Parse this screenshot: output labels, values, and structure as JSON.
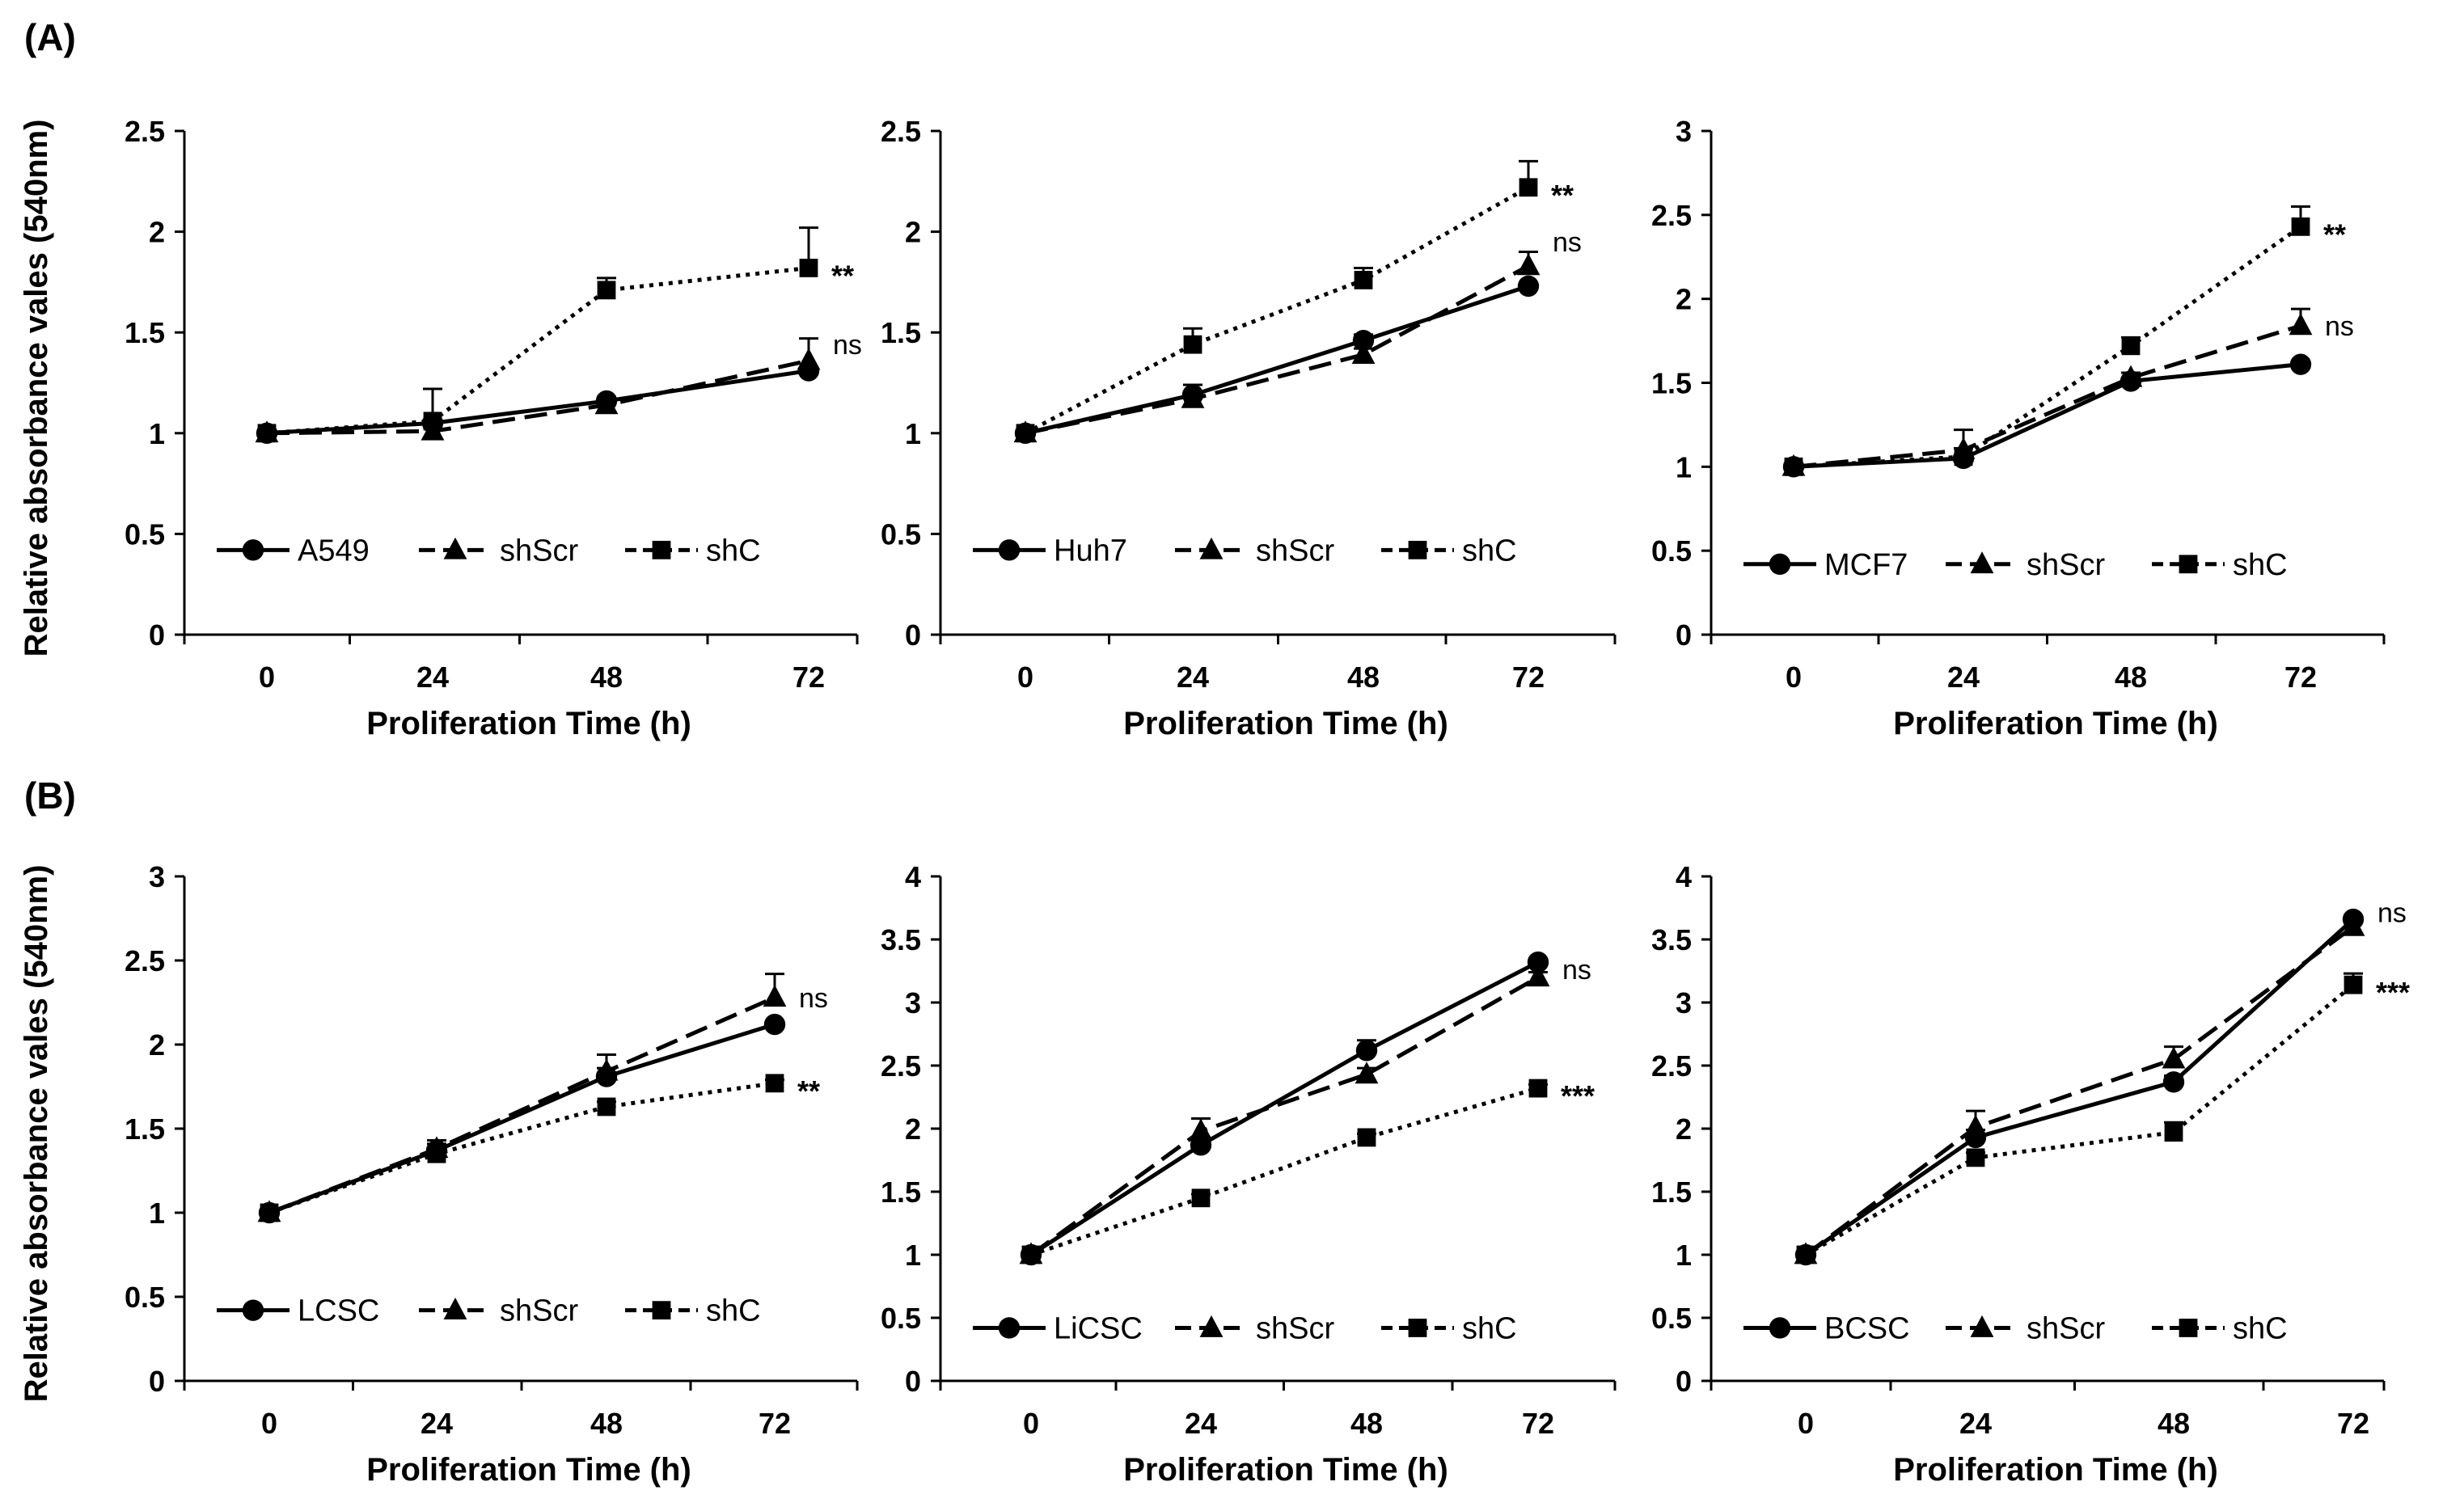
{
  "panel_labels": [
    "(A)",
    "(B)"
  ],
  "ylabel": "Relative absorbance vales (540nm)",
  "chart_data": [
    {
      "type": "line",
      "xlabel": "Proliferation Time (h)",
      "ylabel": "Relative absorbance vales (540nm)",
      "x": [
        0,
        24,
        48,
        72
      ],
      "xtick_labels": [
        "0",
        "24",
        "48",
        "72"
      ],
      "ylim": [
        0,
        2.5
      ],
      "yticks": [
        0,
        0.5,
        1,
        1.5,
        2,
        2.5
      ],
      "ytick_labels": [
        "0",
        "0.5",
        "1",
        "1.5",
        "2",
        "2.5"
      ],
      "legend_position": "bottom-left",
      "series": [
        {
          "name": "A549",
          "values": [
            1.0,
            1.05,
            1.16,
            1.31
          ],
          "errors": [
            0,
            0,
            0,
            0
          ],
          "marker": "circle",
          "dash": "solid"
        },
        {
          "name": "shScr",
          "values": [
            1.0,
            1.01,
            1.14,
            1.36
          ],
          "errors": [
            0,
            0.02,
            0.04,
            0.11
          ],
          "marker": "triangle",
          "dash": "dashed"
        },
        {
          "name": "shC",
          "values": [
            1.0,
            1.06,
            1.71,
            1.82
          ],
          "errors": [
            0,
            0.16,
            0.06,
            0.2
          ],
          "marker": "square",
          "dash": "dotted"
        }
      ],
      "annotations": [
        {
          "text": "**",
          "series": 2
        },
        {
          "text": "ns",
          "series": 1
        }
      ]
    },
    {
      "type": "line",
      "xlabel": "Proliferation Time (h)",
      "x": [
        0,
        24,
        48,
        72
      ],
      "xtick_labels": [
        "0",
        "24",
        "48",
        "72"
      ],
      "ylim": [
        0,
        2.5
      ],
      "yticks": [
        0,
        0.5,
        1,
        1.5,
        2,
        2.5
      ],
      "ytick_labels": [
        "0",
        "0.5",
        "1",
        "1.5",
        "2",
        "2.5"
      ],
      "legend_position": "bottom-left",
      "series": [
        {
          "name": "Huh7",
          "values": [
            1.0,
            1.19,
            1.46,
            1.73
          ],
          "errors": [
            0,
            0.05,
            0.03,
            0
          ],
          "marker": "circle",
          "dash": "solid"
        },
        {
          "name": "shScr",
          "values": [
            1.0,
            1.17,
            1.39,
            1.83
          ],
          "errors": [
            0,
            0.03,
            0.03,
            0.07
          ],
          "marker": "triangle",
          "dash": "dashed"
        },
        {
          "name": "shC",
          "values": [
            1.0,
            1.44,
            1.76,
            2.22
          ],
          "errors": [
            0,
            0.08,
            0.06,
            0.13
          ],
          "marker": "square",
          "dash": "dotted"
        }
      ],
      "annotations": [
        {
          "text": "**",
          "series": 2
        },
        {
          "text": "ns",
          "series": 1
        }
      ]
    },
    {
      "type": "line",
      "xlabel": "Proliferation Time (h)",
      "x": [
        0,
        24,
        48,
        72
      ],
      "xtick_labels": [
        "0",
        "24",
        "48",
        "72"
      ],
      "ylim": [
        0,
        3
      ],
      "yticks": [
        0,
        0.5,
        1,
        1.5,
        2,
        2.5,
        3
      ],
      "ytick_labels": [
        "0",
        "0.5",
        "1",
        "1.5",
        "2",
        "2.5",
        "3"
      ],
      "legend_position": "bottom-left",
      "series": [
        {
          "name": "MCF7",
          "values": [
            1.0,
            1.05,
            1.51,
            1.61
          ],
          "errors": [
            0,
            0,
            0,
            0
          ],
          "marker": "circle",
          "dash": "solid"
        },
        {
          "name": "shScr",
          "values": [
            1.0,
            1.1,
            1.53,
            1.84
          ],
          "errors": [
            0,
            0.12,
            0.03,
            0.1
          ],
          "marker": "triangle",
          "dash": "dashed"
        },
        {
          "name": "shC",
          "values": [
            1.0,
            1.06,
            1.72,
            2.43
          ],
          "errors": [
            0,
            0.05,
            0.05,
            0.12
          ],
          "marker": "square",
          "dash": "dotted"
        }
      ],
      "annotations": [
        {
          "text": "**",
          "series": 2
        },
        {
          "text": "ns",
          "series": 1
        }
      ]
    },
    {
      "type": "line",
      "xlabel": "Proliferation Time (h)",
      "ylabel": "Relative absorbance vales (540nm)",
      "x": [
        0,
        24,
        48,
        72
      ],
      "xtick_labels": [
        "0",
        "24",
        "48",
        "72"
      ],
      "ylim": [
        0,
        3
      ],
      "yticks": [
        0,
        0.5,
        1,
        1.5,
        2,
        2.5,
        3
      ],
      "ytick_labels": [
        "0",
        "0.5",
        "1",
        "1.5",
        "2",
        "2.5",
        "3"
      ],
      "legend_position": "bottom-left",
      "series": [
        {
          "name": "LCSC",
          "values": [
            1.0,
            1.37,
            1.81,
            2.12
          ],
          "errors": [
            0,
            0.04,
            0.05,
            0
          ],
          "marker": "circle",
          "dash": "solid"
        },
        {
          "name": "shScr",
          "values": [
            1.0,
            1.38,
            1.84,
            2.28
          ],
          "errors": [
            0,
            0.05,
            0.1,
            0.14
          ],
          "marker": "triangle",
          "dash": "dashed"
        },
        {
          "name": "shC",
          "values": [
            1.0,
            1.35,
            1.63,
            1.77
          ],
          "errors": [
            0,
            0.03,
            0.03,
            0.02
          ],
          "marker": "square",
          "dash": "dotted"
        }
      ],
      "annotations": [
        {
          "text": "ns",
          "series": 1
        },
        {
          "text": "**",
          "series": 2
        }
      ]
    },
    {
      "type": "line",
      "xlabel": "Proliferation Time (h)",
      "x": [
        0,
        24,
        48,
        72
      ],
      "xtick_labels": [
        "0",
        "24",
        "48",
        "72"
      ],
      "ylim": [
        0,
        4
      ],
      "yticks": [
        0,
        0.5,
        1,
        1.5,
        2,
        2.5,
        3,
        3.5,
        4
      ],
      "ytick_labels": [
        "0",
        "0.5",
        "1",
        "1.5",
        "2",
        "2.5",
        "3",
        "3.5",
        "4"
      ],
      "legend_position": "bottom-left",
      "series": [
        {
          "name": "LiCSC",
          "values": [
            1.0,
            1.87,
            2.62,
            3.32
          ],
          "errors": [
            0,
            0.04,
            0.08,
            0.03
          ],
          "marker": "circle",
          "dash": "solid"
        },
        {
          "name": "shScr",
          "values": [
            1.0,
            1.98,
            2.43,
            3.2
          ],
          "errors": [
            0,
            0.1,
            0.05,
            0.04
          ],
          "marker": "triangle",
          "dash": "dashed"
        },
        {
          "name": "shC",
          "values": [
            1.0,
            1.45,
            1.93,
            2.32
          ],
          "errors": [
            0,
            0.03,
            0.03,
            0.03
          ],
          "marker": "square",
          "dash": "dotted"
        }
      ],
      "annotations": [
        {
          "text": "ns",
          "series": 1
        },
        {
          "text": "***",
          "series": 2
        }
      ]
    },
    {
      "type": "line",
      "xlabel": "Proliferation Time (h)",
      "x": [
        0,
        24,
        48,
        72
      ],
      "xtick_labels": [
        "0",
        "24",
        "48",
        "72"
      ],
      "ylim": [
        0,
        4
      ],
      "yticks": [
        0,
        0.5,
        1,
        1.5,
        2,
        2.5,
        3,
        3.5,
        4
      ],
      "ytick_labels": [
        "0",
        "0.5",
        "1",
        "1.5",
        "2",
        "2.5",
        "3",
        "3.5",
        "4"
      ],
      "legend_position": "bottom-left",
      "series": [
        {
          "name": "BCSC",
          "values": [
            1.0,
            1.93,
            2.37,
            3.66
          ],
          "errors": [
            0,
            0.06,
            0.05,
            0.03
          ],
          "marker": "circle",
          "dash": "solid"
        },
        {
          "name": "shScr",
          "values": [
            1.0,
            2.01,
            2.55,
            3.6
          ],
          "errors": [
            0,
            0.13,
            0.1,
            0.05
          ],
          "marker": "triangle",
          "dash": "dashed"
        },
        {
          "name": "shC",
          "values": [
            1.0,
            1.77,
            1.97,
            3.14
          ],
          "errors": [
            0,
            0.04,
            0.08,
            0.09
          ],
          "marker": "square",
          "dash": "dotted"
        }
      ],
      "annotations": [
        {
          "text": "ns",
          "series": 1
        },
        {
          "text": "***",
          "series": 2
        }
      ]
    }
  ]
}
